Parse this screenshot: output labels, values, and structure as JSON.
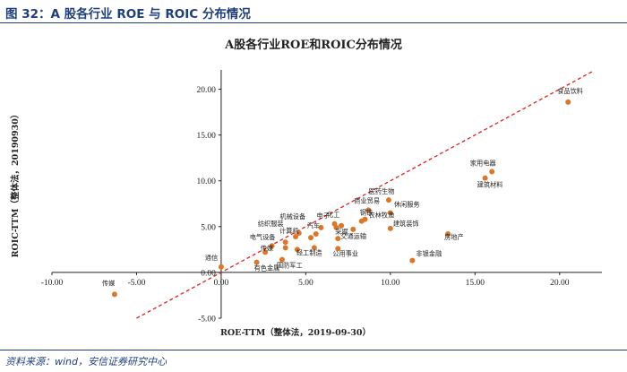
{
  "figure": {
    "caption": "图 32：A 股各行业 ROE 与 ROIC 分布情况",
    "source": "资料来源：wind，安信证券研究中心"
  },
  "chart_data": {
    "type": "scatter",
    "title": "A股各行业ROE和ROIC分布情况",
    "xlabel": "ROE-TTM（整体法，2019-09-30）",
    "ylabel": "ROIC-TTM（整体法，20190930）",
    "xlim": [
      -10,
      22.5
    ],
    "ylim": [
      -5,
      22.5
    ],
    "x_ticks": [
      -10,
      -5,
      0,
      5,
      10,
      15,
      20
    ],
    "y_ticks": [
      -5,
      0,
      5,
      10,
      15,
      20
    ],
    "x_tick_labels": [
      "-10.00",
      "-5.00",
      "0.00",
      "5.00",
      "10.00",
      "15.00",
      "20.00"
    ],
    "y_tick_labels": [
      "-5.00",
      "0.00",
      "5.00",
      "10.00",
      "15.00",
      "20.00"
    ],
    "grid": false,
    "point_color": "#d9782a",
    "reference_line": {
      "style": "dashed",
      "color": "#e02020",
      "x": [
        -5,
        22
      ],
      "y": [
        -5,
        22
      ]
    },
    "points": [
      {
        "label": "食品饮料",
        "x": 20.5,
        "y": 18.6
      },
      {
        "label": "家用电器",
        "x": 16.0,
        "y": 11.0
      },
      {
        "label": "建筑材料",
        "x": 15.6,
        "y": 10.3
      },
      {
        "label": "医药生物",
        "x": 9.9,
        "y": 7.9
      },
      {
        "label": "休闲服务",
        "x": 10.0,
        "y": 6.5
      },
      {
        "label": "商业贸易",
        "x": 8.7,
        "y": 6.8
      },
      {
        "label": "农林牧渔",
        "x": 8.5,
        "y": 5.8
      },
      {
        "label": "建筑装饰",
        "x": 10.0,
        "y": 4.8
      },
      {
        "label": "钢铁",
        "x": 8.3,
        "y": 5.6
      },
      {
        "label": "交通运输",
        "x": 7.8,
        "y": 4.7
      },
      {
        "label": "电子",
        "x": 6.7,
        "y": 5.3
      },
      {
        "label": "化工",
        "x": 7.1,
        "y": 5.1
      },
      {
        "label": "机械设备",
        "x": 5.9,
        "y": 4.9
      },
      {
        "label": "汽车",
        "x": 5.6,
        "y": 4.2
      },
      {
        "label": "纺织服装",
        "x": 4.6,
        "y": 4.3
      },
      {
        "label": "计算机",
        "x": 4.4,
        "y": 3.9
      },
      {
        "label": "电气设备",
        "x": 3.8,
        "y": 3.3
      },
      {
        "label": "采掘",
        "x": 6.9,
        "y": 3.7
      },
      {
        "label": "传媒",
        "x": 3.8,
        "y": 2.7
      },
      {
        "label": "轻工制造",
        "x": 5.5,
        "y": 2.7
      },
      {
        "label": "公用事业",
        "x": 6.9,
        "y": 2.6
      },
      {
        "label": "有色金属",
        "x": 2.1,
        "y": 1.1
      },
      {
        "label": "国防军工",
        "x": 3.6,
        "y": 1.4
      },
      {
        "label": "通信",
        "x": 0.0,
        "y": 0.6
      },
      {
        "label": "房地产",
        "x": 13.4,
        "y": 4.2
      },
      {
        "label": "非银金融",
        "x": 11.3,
        "y": 1.3
      },
      {
        "label": "传媒",
        "x": -6.3,
        "y": -2.4
      }
    ],
    "unlabeled_points": [
      {
        "x": 3.0,
        "y": 2.9
      },
      {
        "x": 4.5,
        "y": 2.5
      },
      {
        "x": 5.3,
        "y": 3.8
      },
      {
        "x": 6.8,
        "y": 4.9
      },
      {
        "x": 2.6,
        "y": 2.2
      }
    ]
  }
}
